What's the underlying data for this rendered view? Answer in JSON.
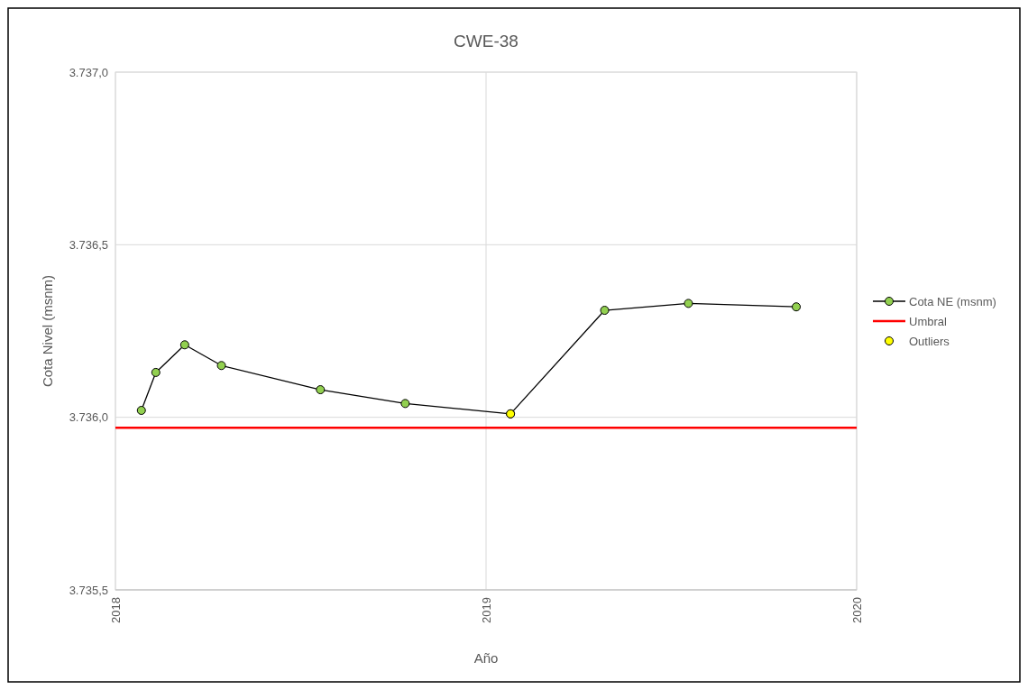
{
  "chart_data": {
    "type": "line",
    "title": "CWE-38",
    "xlabel": "Año",
    "ylabel": "Cota Nivel (msnm)",
    "xlim": [
      2018,
      2020
    ],
    "xticks": [
      2018,
      2019,
      2020
    ],
    "ylim": [
      3735.5,
      3737.0
    ],
    "yticks": [
      {
        "value": 3735.5,
        "label": "3.735,5"
      },
      {
        "value": 3736.0,
        "label": "3.736,0"
      },
      {
        "value": 3736.5,
        "label": "3.736,5"
      },
      {
        "value": 3737.0,
        "label": "3.737,0"
      }
    ],
    "grid": true,
    "legend": "right",
    "marker": "circle",
    "series": [
      {
        "name": "Cota NE (msnm)",
        "color": "#92d050",
        "x": [
          2018.07,
          2018.109,
          2018.187,
          2018.286,
          2018.553,
          2018.782,
          2019.066,
          2019.32,
          2019.546,
          2019.837
        ],
        "values": [
          3736.02,
          3736.13,
          3736.21,
          3736.15,
          3736.08,
          3736.04,
          3736.01,
          3736.31,
          3736.33,
          3736.32
        ]
      },
      {
        "name": "Outliers",
        "type": "scatter",
        "color": "#ffff00",
        "x": [
          2019.066
        ],
        "values": [
          3736.01
        ]
      }
    ],
    "ref_lines": [
      {
        "axis": "y",
        "value": 3735.97,
        "label": "Umbral",
        "color": "#ff0000"
      }
    ]
  }
}
